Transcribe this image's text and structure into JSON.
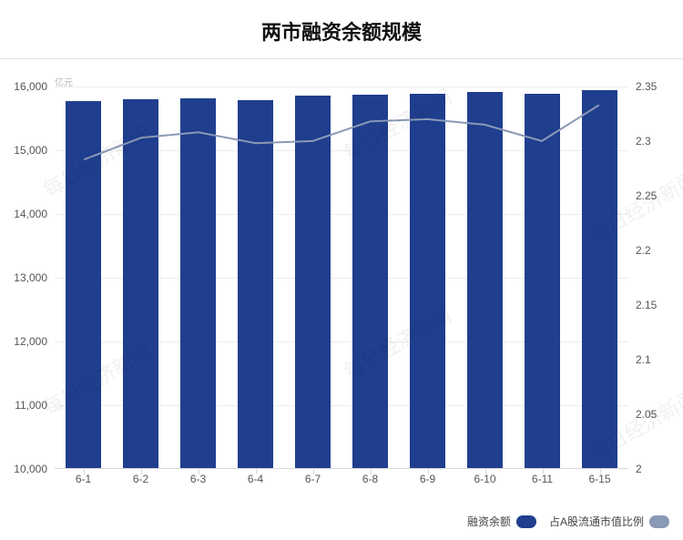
{
  "watermark_text": "每日经济新闻",
  "title": {
    "text": "两市融资余额规模",
    "fontsize": 22,
    "color": "#111111"
  },
  "unit_label": "亿元",
  "chart": {
    "type": "bar+line",
    "background_color": "#ffffff",
    "grid_color": "#ececec",
    "axis_line_color": "#d9d9d9",
    "categories": [
      "6-1",
      "6-2",
      "6-3",
      "6-4",
      "6-7",
      "6-8",
      "6-9",
      "6-10",
      "6-11",
      "6-15"
    ],
    "bars": {
      "values": [
        15760,
        15790,
        15800,
        15770,
        15850,
        15860,
        15870,
        15900,
        15870,
        15930
      ],
      "color": "#1f3e8e",
      "width_ratio": 0.62
    },
    "line": {
      "values": [
        2.283,
        2.303,
        2.308,
        2.298,
        2.3,
        2.318,
        2.32,
        2.315,
        2.3,
        2.333
      ],
      "color": "#8a99b5",
      "width": 2
    },
    "y_left": {
      "min": 10000,
      "max": 16000,
      "step": 1000,
      "labels": [
        "10,000",
        "11,000",
        "12,000",
        "13,000",
        "14,000",
        "15,000",
        "16,000"
      ],
      "fontsize": 12,
      "color": "#555555"
    },
    "y_right": {
      "min": 2.0,
      "max": 2.35,
      "step": 0.05,
      "labels": [
        "2",
        "2.05",
        "2.1",
        "2.15",
        "2.2",
        "2.25",
        "2.3",
        "2.35"
      ],
      "fontsize": 12,
      "color": "#555555"
    },
    "x_axis": {
      "fontsize": 12,
      "color": "#555555"
    }
  },
  "legend": {
    "items": [
      {
        "label": "融资余额",
        "color": "#1f3e8e"
      },
      {
        "label": "占A股流通市值比例",
        "color": "#8a99b5"
      }
    ],
    "fontsize": 12
  }
}
